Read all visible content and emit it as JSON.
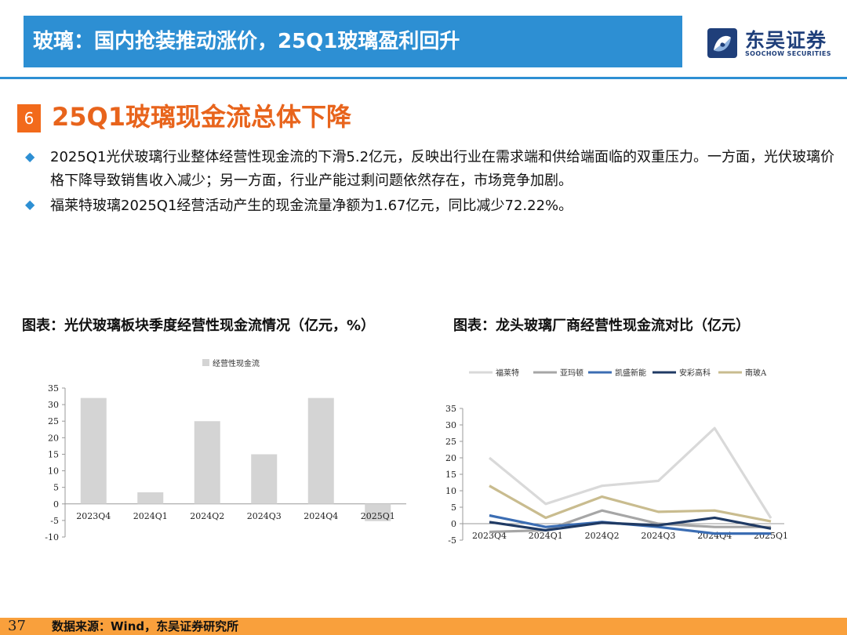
{
  "header": {
    "title": "玻璃：国内抢装推动涨价，25Q1玻璃盈利回升",
    "logo_cn": "东吴证券",
    "logo_en": "SOOCHOW SECURITIES"
  },
  "section": {
    "number": "6",
    "title": "25Q1玻璃现金流总体下降"
  },
  "bullets": [
    "2025Q1光伏玻璃行业整体经营性现金流的下滑5.2亿元，反映出行业在需求端和供给端面临的双重压力。一方面，光伏玻璃价格下降导致销售收入减少；另一方面，行业产能过剩问题依然存在，市场竞争加剧。",
    "福莱特玻璃2025Q1经营活动产生的现金流量净额为1.67亿元，同比减少72.22%。"
  ],
  "chart1_title": "图表：光伏玻璃板块季度经营性现金流情况（亿元，%）",
  "chart2_title": "图表：龙头玻璃厂商经营性现金流对比（亿元）",
  "chart_data": [
    {
      "type": "bar",
      "categories": [
        "2023Q4",
        "2024Q1",
        "2024Q2",
        "2024Q3",
        "2024Q4",
        "2025Q1"
      ],
      "series": [
        {
          "name": "经营性现金流",
          "values": [
            32,
            3.5,
            25,
            15,
            32,
            -5.2
          ],
          "color": "#d4d4d4"
        }
      ],
      "ylim": [
        -10,
        35
      ],
      "yticks": [
        -10,
        -5,
        0,
        5,
        10,
        15,
        20,
        25,
        30,
        35
      ],
      "legend": "top-center",
      "grid": false
    },
    {
      "type": "line",
      "categories": [
        "2023Q4",
        "2024Q1",
        "2024Q2",
        "2024Q3",
        "2024Q4",
        "2025Q1"
      ],
      "series": [
        {
          "name": "福莱特",
          "values": [
            20,
            6,
            11.5,
            13,
            29,
            1.67
          ],
          "color": "#d9d9d9"
        },
        {
          "name": "亚玛顿",
          "values": [
            -2.5,
            -2,
            4,
            0,
            -1,
            -1
          ],
          "color": "#a6a6a6"
        },
        {
          "name": "凯盛新能",
          "values": [
            2.5,
            -1,
            0.5,
            -1,
            -3,
            -3
          ],
          "color": "#3b6db3"
        },
        {
          "name": "安彩高科",
          "values": [
            0.5,
            -2,
            0.3,
            -0.5,
            1.8,
            -1.5
          ],
          "color": "#1f3a64"
        },
        {
          "name": "南玻A",
          "values": [
            11.5,
            1.8,
            8.2,
            3.6,
            4,
            0.7
          ],
          "color": "#c9bc8f"
        }
      ],
      "ylim": [
        -5,
        35
      ],
      "yticks": [
        -5,
        0,
        5,
        10,
        15,
        20,
        25,
        30,
        35
      ],
      "legend": "top",
      "grid": false
    }
  ],
  "footer": {
    "page": "37",
    "source": "数据来源：Wind，东吴证券研究所"
  }
}
